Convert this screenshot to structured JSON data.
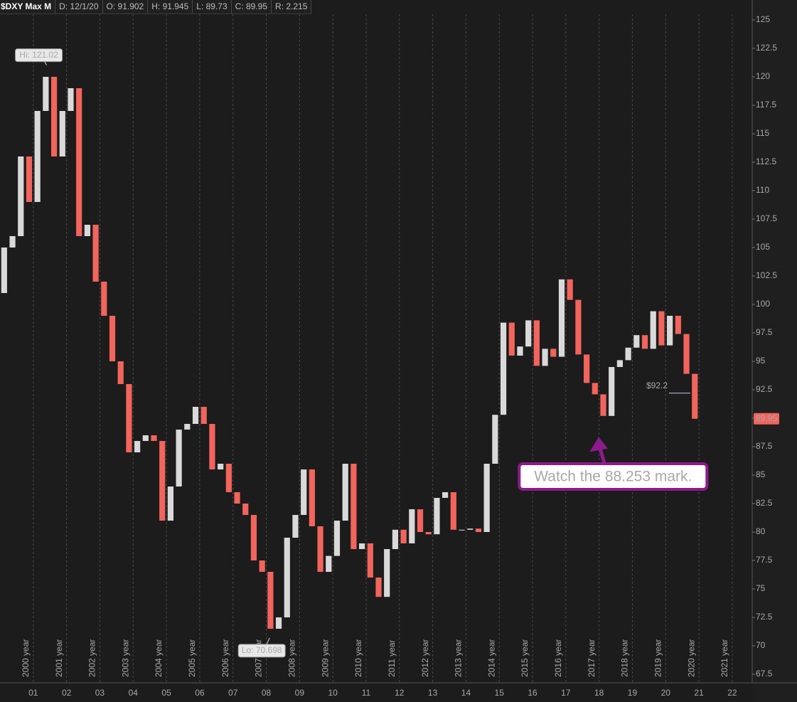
{
  "chart_data": {
    "type": "candlestick",
    "title": "$DXY Max M",
    "header_fields": [
      "D: 12/1/20",
      "O: 91.902",
      "H: 91.945",
      "L: 89.73",
      "C: 89.95",
      "R: 2.215"
    ],
    "x": [
      2000.125,
      2000.375,
      2000.625,
      2000.875,
      2001.125,
      2001.375,
      2001.625,
      2001.875,
      2002.125,
      2002.375,
      2002.625,
      2002.875,
      2003.125,
      2003.375,
      2003.625,
      2003.875,
      2004.125,
      2004.375,
      2004.625,
      2004.875,
      2005.125,
      2005.375,
      2005.625,
      2005.875,
      2006.125,
      2006.375,
      2006.625,
      2006.875,
      2007.125,
      2007.375,
      2007.625,
      2007.875,
      2008.125,
      2008.375,
      2008.625,
      2008.875,
      2009.125,
      2009.375,
      2009.625,
      2009.875,
      2010.125,
      2010.375,
      2010.625,
      2010.875,
      2011.125,
      2011.375,
      2011.625,
      2011.875,
      2012.125,
      2012.375,
      2012.625,
      2012.875,
      2013.125,
      2013.375,
      2013.625,
      2013.875,
      2014.125,
      2014.375,
      2014.625,
      2014.875,
      2015.125,
      2015.375,
      2015.625,
      2015.875,
      2016.125,
      2016.375,
      2016.625,
      2016.875,
      2017.125,
      2017.375,
      2017.625,
      2017.875,
      2018.125,
      2018.375,
      2018.625,
      2018.875,
      2019.125,
      2019.375,
      2019.625,
      2019.875,
      2020.125,
      2020.375,
      2020.625,
      2020.875
    ],
    "open": [
      101,
      105,
      106,
      113,
      109,
      117,
      120,
      113,
      117,
      119,
      106,
      107,
      102,
      99,
      95,
      93,
      87,
      88,
      88.5,
      88,
      81,
      84,
      89,
      89.5,
      91,
      89.5,
      85.5,
      86,
      83.5,
      82.5,
      81.5,
      77.5,
      76.5,
      71.5,
      72.5,
      79.5,
      81.5,
      85.5,
      80.5,
      76.5,
      77.9,
      81,
      86,
      78.5,
      79,
      76,
      74.3,
      78.5,
      80.2,
      79,
      82,
      80,
      79.8,
      83,
      83.5,
      80.2,
      80.2,
      80.3,
      80,
      86,
      90.3,
      98.4,
      95.5,
      96.3,
      98.6,
      94.6,
      96.1,
      95.4,
      102.2,
      100.4,
      95.6,
      93.1,
      92.1,
      90.2,
      94.5,
      95.1,
      96.2,
      97.3,
      96.1,
      99.4,
      96.4,
      99,
      97.4,
      93.9
    ],
    "close": [
      105,
      106,
      113,
      109,
      117,
      120,
      113,
      117,
      119,
      106,
      107,
      102,
      99,
      95,
      93,
      87,
      88,
      88.5,
      88,
      81,
      84,
      89,
      89.5,
      91,
      89.5,
      85.5,
      86,
      83.5,
      82.5,
      81.5,
      77.5,
      76.5,
      71.5,
      72.5,
      79.5,
      81.5,
      85.5,
      80.5,
      76.5,
      77.9,
      81,
      86,
      78.5,
      79,
      76,
      74.3,
      78.5,
      80.2,
      79,
      82,
      80,
      79.8,
      83,
      83.5,
      80.2,
      80.2,
      80.3,
      80,
      86,
      90.3,
      98.4,
      95.5,
      96.3,
      98.6,
      94.6,
      96.1,
      95.4,
      102.2,
      100.4,
      95.6,
      93.1,
      92.1,
      90.2,
      94.5,
      95.1,
      96.2,
      97.3,
      96.1,
      99.4,
      96.4,
      99,
      97.4,
      93.9,
      89.95
    ],
    "up_color": "#d9d9d9",
    "down_color": "#f2645c",
    "xlim": [
      2000,
      2022.6
    ],
    "ylim": [
      66.75,
      125.5
    ],
    "xticks": [
      {
        "value": 2001,
        "label": "01"
      },
      {
        "value": 2002,
        "label": "02"
      },
      {
        "value": 2003,
        "label": "03"
      },
      {
        "value": 2004,
        "label": "04"
      },
      {
        "value": 2005,
        "label": "05"
      },
      {
        "value": 2006,
        "label": "06"
      },
      {
        "value": 2007,
        "label": "07"
      },
      {
        "value": 2008,
        "label": "08"
      },
      {
        "value": 2009,
        "label": "09"
      },
      {
        "value": 2010,
        "label": "10"
      },
      {
        "value": 2011,
        "label": "11"
      },
      {
        "value": 2012,
        "label": "12"
      },
      {
        "value": 2013,
        "label": "13"
      },
      {
        "value": 2014,
        "label": "14"
      },
      {
        "value": 2015,
        "label": "15"
      },
      {
        "value": 2016,
        "label": "16"
      },
      {
        "value": 2017,
        "label": "17"
      },
      {
        "value": 2018,
        "label": "18"
      },
      {
        "value": 2019,
        "label": "19"
      },
      {
        "value": 2020,
        "label": "20"
      },
      {
        "value": 2021,
        "label": "21"
      },
      {
        "value": 2022,
        "label": "22"
      }
    ],
    "year_labels": [
      {
        "value": 2001,
        "label": "2000 year"
      },
      {
        "value": 2002,
        "label": "2001 year"
      },
      {
        "value": 2003,
        "label": "2002 year"
      },
      {
        "value": 2004,
        "label": "2003 year"
      },
      {
        "value": 2005,
        "label": "2004 year"
      },
      {
        "value": 2006,
        "label": "2005 year"
      },
      {
        "value": 2007,
        "label": "2006 year"
      },
      {
        "value": 2008,
        "label": "2007 year"
      },
      {
        "value": 2009,
        "label": "2008 year"
      },
      {
        "value": 2010,
        "label": "2009 year"
      },
      {
        "value": 2011,
        "label": "2010 year"
      },
      {
        "value": 2012,
        "label": "2011 year"
      },
      {
        "value": 2013,
        "label": "2012 year"
      },
      {
        "value": 2014,
        "label": "2013 year"
      },
      {
        "value": 2015,
        "label": "2014 year"
      },
      {
        "value": 2016,
        "label": "2015 year"
      },
      {
        "value": 2017,
        "label": "2016 year"
      },
      {
        "value": 2018,
        "label": "2017 year"
      },
      {
        "value": 2019,
        "label": "2018 year"
      },
      {
        "value": 2020,
        "label": "2019 year"
      },
      {
        "value": 2021,
        "label": "2020 year"
      },
      {
        "value": 2022,
        "label": "2021 year"
      }
    ],
    "yticks": [
      67.5,
      70,
      72.5,
      75,
      77.5,
      80,
      82.5,
      85,
      87.5,
      90,
      92.5,
      95,
      97.5,
      100,
      102.5,
      105,
      107.5,
      110,
      112.5,
      115,
      117.5,
      120,
      122.5,
      125
    ],
    "grid": true,
    "last_price": 89.95,
    "high_label": {
      "text": "Hi: 121.02",
      "x": 2001.4,
      "y": 121.02
    },
    "low_label": {
      "text": "Lo: 70.698",
      "x": 2008.1,
      "y": 70.698
    },
    "price_label": {
      "text": "$92.2",
      "x": 2020.4,
      "y": 92.2
    },
    "callout": {
      "text": "Watch the 88.253 mark.",
      "x": 2017.95,
      "y": 88.253
    }
  }
}
